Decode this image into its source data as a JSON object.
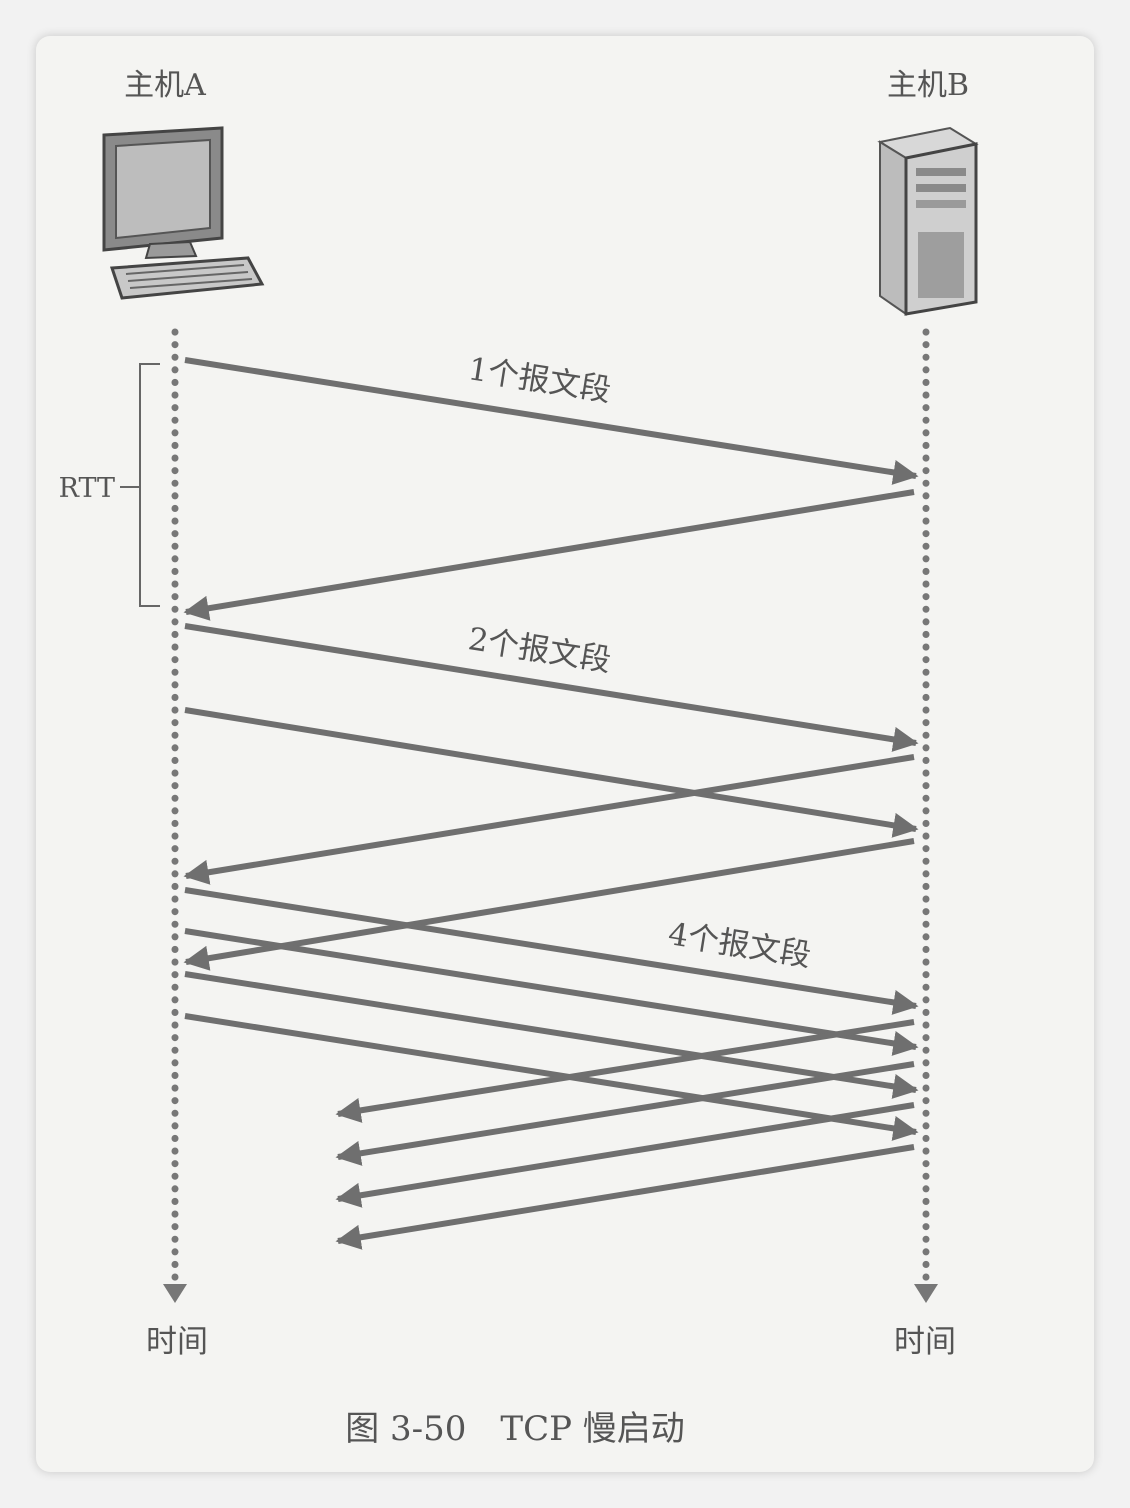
{
  "host_a": {
    "label": "主机A",
    "icon": "desktop-computer-icon",
    "time_label": "时间"
  },
  "host_b": {
    "label": "主机B",
    "icon": "tower-server-icon",
    "time_label": "时间"
  },
  "rtt_label": "RTT",
  "rounds": [
    {
      "label": "1个报文段",
      "segments": 1
    },
    {
      "label": "2个报文段",
      "segments": 2
    },
    {
      "label": "4个报文段",
      "segments": 4
    }
  ],
  "caption": "图 3-50　TCP 慢启动",
  "colors": {
    "line": "#6f6f6f",
    "text": "#555555",
    "timeline": "#777777"
  }
}
